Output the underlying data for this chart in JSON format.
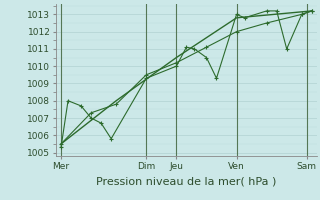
{
  "xlabel": "Pression niveau de la mer( hPa )",
  "bg_color": "#cce8e8",
  "grid_major_color": "#aacccc",
  "grid_minor_color": "#bbdddd",
  "line_color": "#2d6b2d",
  "marker_color": "#2d6b2d",
  "ylim": [
    1004.8,
    1013.6
  ],
  "xlim": [
    0,
    26
  ],
  "yticks": [
    1005,
    1006,
    1007,
    1008,
    1009,
    1010,
    1011,
    1012,
    1013
  ],
  "day_labels": [
    "Mer",
    "Dim",
    "Jeu",
    "Ven",
    "Sam"
  ],
  "day_positions": [
    0.5,
    9,
    12,
    18,
    25
  ],
  "vline_positions": [
    0.5,
    9,
    12,
    18,
    25
  ],
  "series1_x": [
    0.5,
    1.2,
    2.5,
    3.5,
    4.5,
    5.5,
    9,
    12,
    13,
    13.8,
    15,
    16,
    18,
    18.8,
    21,
    22,
    23,
    24.5,
    25.5
  ],
  "series1_y": [
    1005.3,
    1008.0,
    1007.7,
    1007.0,
    1006.7,
    1005.8,
    1009.3,
    1010.0,
    1011.1,
    1011.0,
    1010.5,
    1009.3,
    1013.0,
    1012.8,
    1013.2,
    1013.2,
    1011.0,
    1013.0,
    1013.2
  ],
  "series2_x": [
    0.5,
    3.5,
    6,
    9,
    12,
    15,
    18,
    21,
    24.5,
    25.5
  ],
  "series2_y": [
    1005.5,
    1007.3,
    1007.8,
    1009.5,
    1010.2,
    1011.1,
    1012.0,
    1012.5,
    1013.0,
    1013.2
  ],
  "series3_x": [
    0.5,
    6,
    12,
    18,
    25.5
  ],
  "series3_y": [
    1005.5,
    1008.0,
    1010.5,
    1012.8,
    1013.2
  ],
  "fontsize_xlabel": 8,
  "fontsize_yticks": 6.5,
  "fontsize_xticks": 6.5
}
